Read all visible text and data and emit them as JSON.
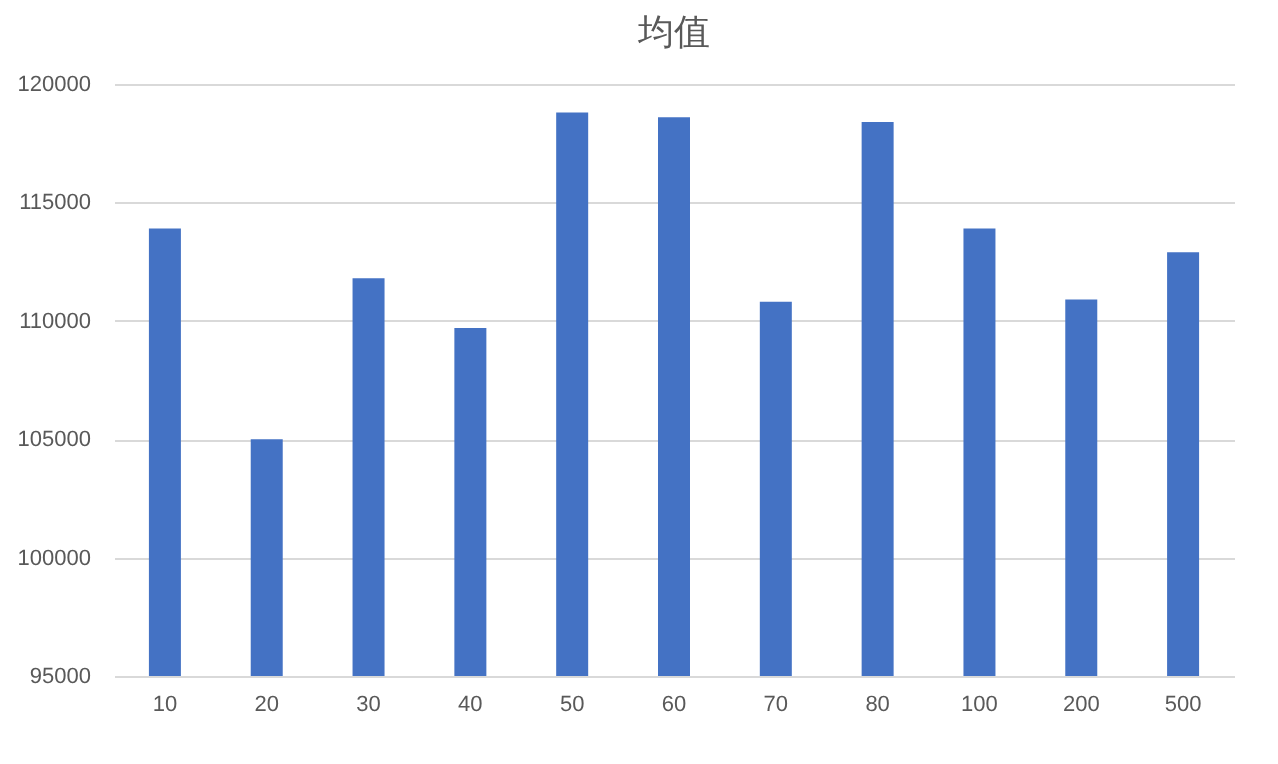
{
  "chart_data": {
    "type": "bar",
    "title": "均值",
    "categories": [
      "10",
      "20",
      "30",
      "40",
      "50",
      "60",
      "70",
      "80",
      "100",
      "200",
      "500"
    ],
    "values": [
      113900,
      105000,
      111800,
      109700,
      118800,
      118600,
      110800,
      118400,
      113900,
      110900,
      112900
    ],
    "color": "#4472c4",
    "ylim": [
      95000,
      120000
    ],
    "yticks": [
      95000,
      100000,
      105000,
      110000,
      115000,
      120000
    ],
    "grid": "y"
  }
}
